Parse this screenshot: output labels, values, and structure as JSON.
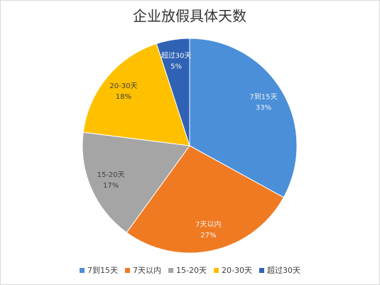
{
  "chart_data": {
    "type": "pie",
    "title": "企业放假具体天数",
    "categories": [
      "7到15天",
      "7天以内",
      "15-20天",
      "20-30天",
      "超过30天"
    ],
    "values": [
      33,
      27,
      17,
      18,
      5
    ],
    "value_labels": [
      "33%",
      "27%",
      "17%",
      "18%",
      "5%"
    ],
    "colors": [
      "#4a8fd8",
      "#f07a22",
      "#a5a5a5",
      "#ffc000",
      "#2f62b5"
    ],
    "legend": "bottom"
  }
}
